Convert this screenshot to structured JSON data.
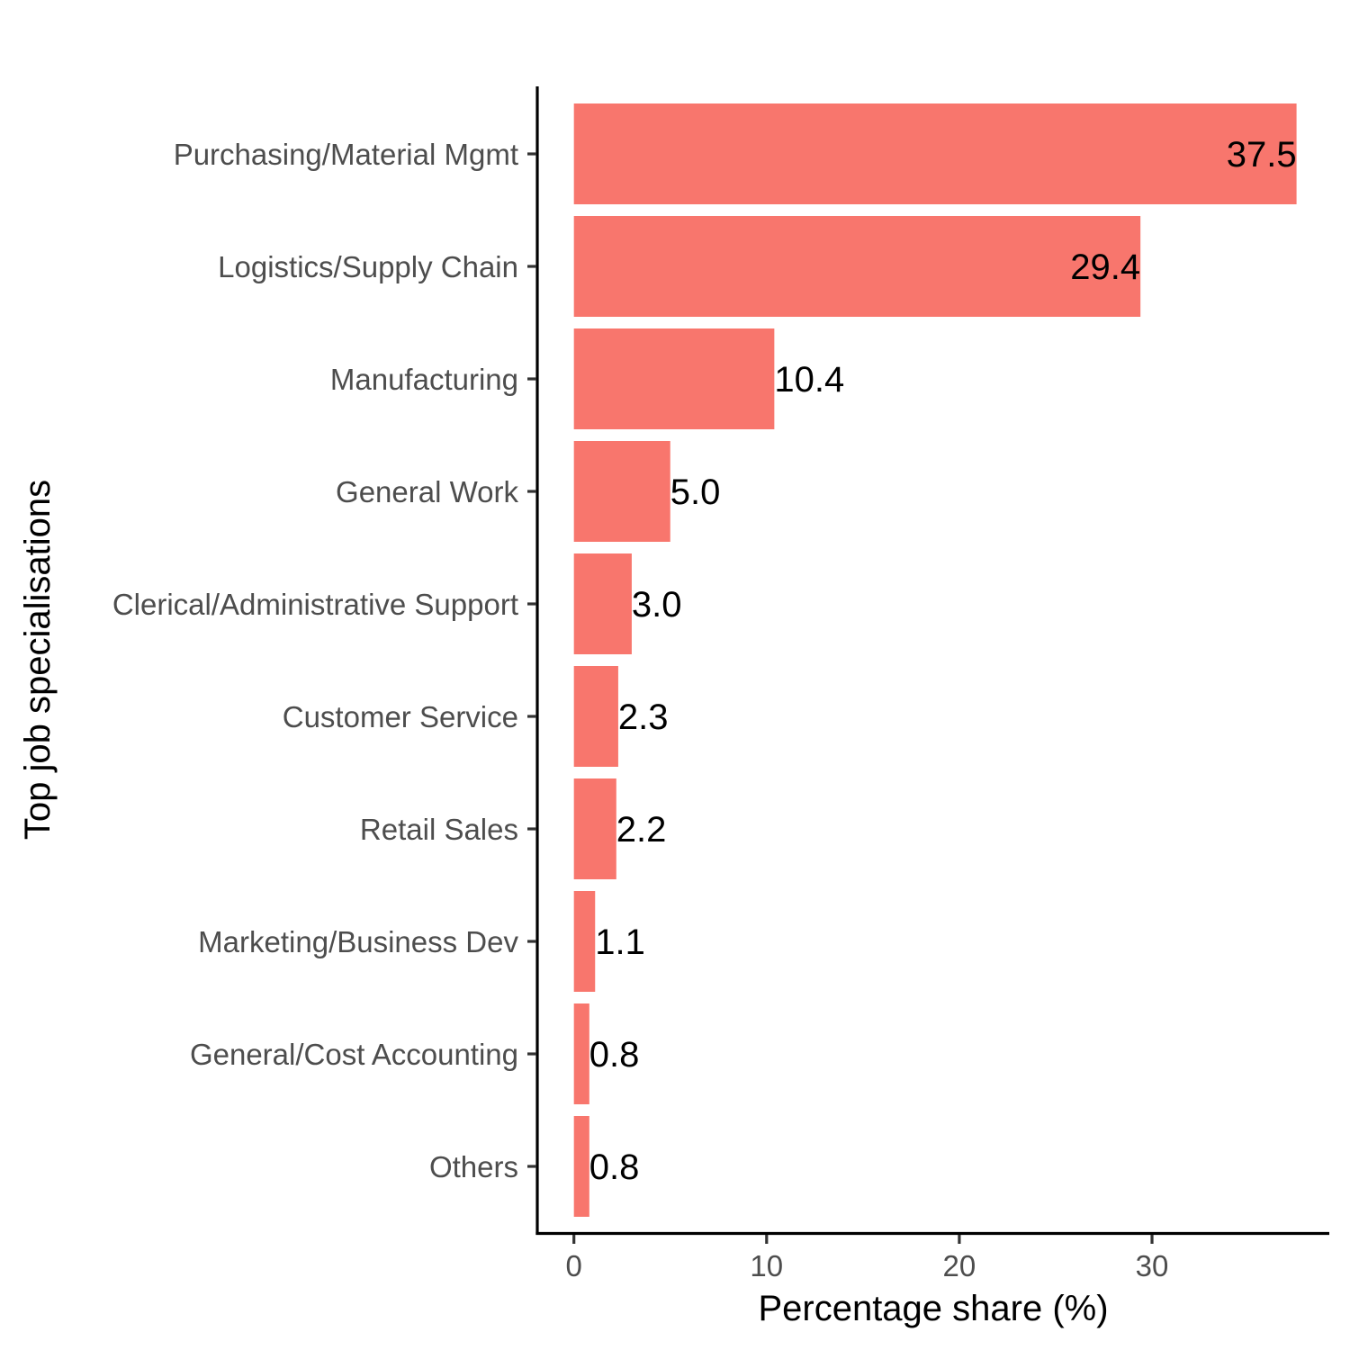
{
  "chart_data": {
    "type": "bar",
    "orientation": "horizontal",
    "categories": [
      "Purchasing/Material Mgmt",
      "Logistics/Supply Chain",
      "Manufacturing",
      "General Work",
      "Clerical/Administrative Support",
      "Customer Service",
      "Retail Sales",
      "Marketing/Business Dev",
      "General/Cost Accounting",
      "Others"
    ],
    "values": [
      37.5,
      29.4,
      10.4,
      5.0,
      3.0,
      2.3,
      2.2,
      1.1,
      0.8,
      0.8
    ],
    "data_labels": [
      "37.5",
      "29.4",
      "10.4",
      "5.0",
      "3.0",
      "2.3",
      "2.2",
      "1.1",
      "0.8",
      "0.8"
    ],
    "xlabel": "Percentage share (%)",
    "ylabel": "Top job specialisations",
    "x_ticks": [
      0,
      10,
      20,
      30
    ],
    "xlim": [
      -1.9,
      39.2
    ],
    "bar_color": "#F8766D",
    "grid": false,
    "legend": "none"
  }
}
